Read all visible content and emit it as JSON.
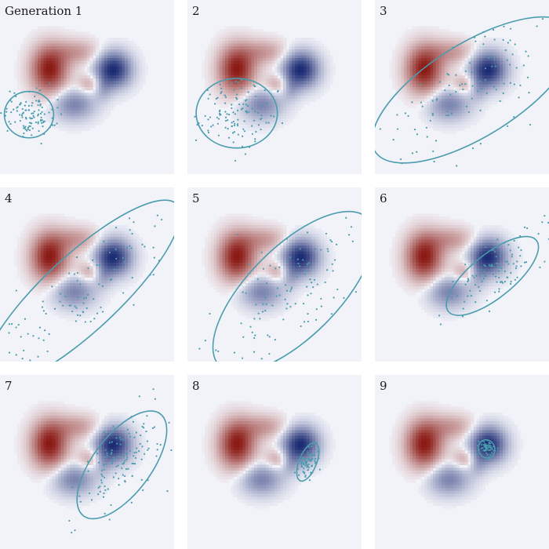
{
  "figure": {
    "background_color": "#f2f3f9",
    "positive_color": "#8b1a14",
    "negative_color": "#1b2a72",
    "ellipse_color": "#4a9cae",
    "sample_color": "#4a9cae"
  },
  "chart_data": {
    "type": "scatter",
    "title": "",
    "xlabel": "",
    "ylabel": "",
    "xlim": [
      -3,
      3
    ],
    "ylim": [
      -3,
      3
    ],
    "grid": false,
    "legend": "none",
    "background_function": {
      "description": "fixed signed field shown as red/white/blue heatmap in every panel",
      "components": [
        {
          "cx": -1.3,
          "cy": 0.6,
          "sx": 0.42,
          "sy": 0.55,
          "amp": 1.0
        },
        {
          "cx": -0.35,
          "cy": 1.2,
          "sx": 0.55,
          "sy": 0.3,
          "amp": 0.35
        },
        {
          "cx": 0.1,
          "cy": 0.1,
          "sx": 0.3,
          "sy": 0.25,
          "amp": 0.35
        },
        {
          "cx": 0.9,
          "cy": 0.6,
          "sx": 0.42,
          "sy": 0.42,
          "amp": -1.0
        },
        {
          "cx": -0.45,
          "cy": -0.6,
          "sx": 0.5,
          "sy": 0.38,
          "amp": -0.5
        },
        {
          "cx": 0.55,
          "cy": -0.05,
          "sx": 0.22,
          "sy": 0.3,
          "amp": -0.25
        }
      ]
    },
    "panels": [
      {
        "label": "Generation 1",
        "n": 110,
        "ellipse": {
          "cx": -2.0,
          "cy": -0.95,
          "rx": 0.85,
          "ry": 0.8,
          "angle": 0
        }
      },
      {
        "label": "2",
        "n": 120,
        "ellipse": {
          "cx": -1.3,
          "cy": -0.9,
          "rx": 1.4,
          "ry": 1.2,
          "angle": 0
        }
      },
      {
        "label": "3",
        "n": 120,
        "ellipse": {
          "cx": 0.4,
          "cy": -0.1,
          "rx": 4.0,
          "ry": 1.6,
          "angle": 32
        }
      },
      {
        "label": "4",
        "n": 110,
        "ellipse": {
          "cx": -0.2,
          "cy": -0.65,
          "rx": 4.5,
          "ry": 1.3,
          "angle": 43
        }
      },
      {
        "label": "5",
        "n": 120,
        "ellipse": {
          "cx": 0.65,
          "cy": -0.6,
          "rx": 3.6,
          "ry": 1.55,
          "angle": 45
        }
      },
      {
        "label": "6",
        "n": 100,
        "ellipse": {
          "cx": 1.05,
          "cy": -0.05,
          "rx": 1.95,
          "ry": 0.75,
          "angle": 39
        }
      },
      {
        "label": "7",
        "n": 130,
        "ellipse": {
          "cx": 1.2,
          "cy": -0.1,
          "rx": 2.2,
          "ry": 1.0,
          "angle": 53
        }
      },
      {
        "label": "8",
        "n": 70,
        "ellipse": {
          "cx": 1.15,
          "cy": 0.0,
          "rx": 0.7,
          "ry": 0.3,
          "angle": 68
        }
      },
      {
        "label": "9",
        "n": 60,
        "ellipse": {
          "cx": 0.85,
          "cy": 0.45,
          "rx": 0.28,
          "ry": 0.32,
          "angle": 20
        }
      }
    ]
  }
}
